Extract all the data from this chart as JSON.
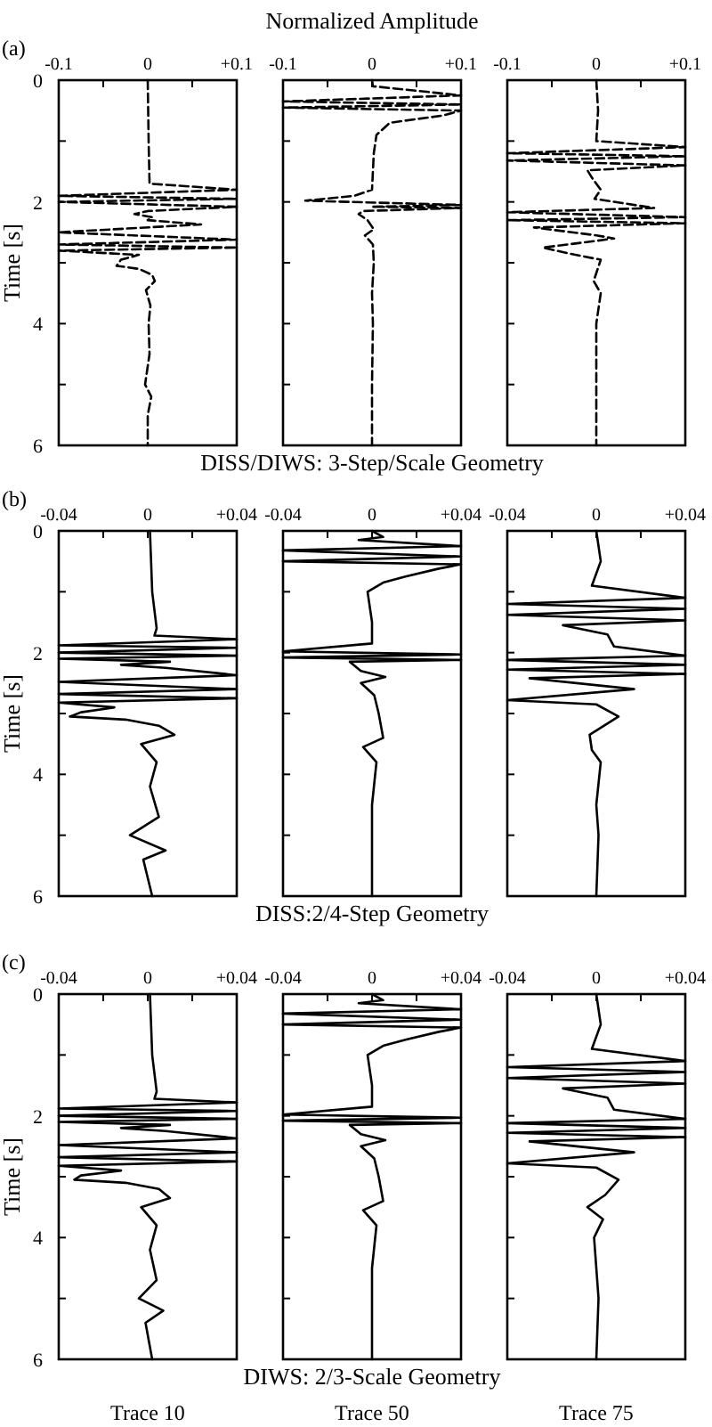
{
  "chart_data": [
    {
      "type": "line",
      "annotations": [
        "(a)"
      ],
      "ylabel": "Time [s]",
      "line_style": "dashed",
      "xlim": [
        -0.1,
        0.1
      ],
      "xticks": [
        -0.1,
        {
          "value": -0.05,
          "label": null
        },
        0,
        {
          "value": 0.05,
          "label": null
        },
        {
          "value": 0.1,
          "label": "+0.1"
        }
      ],
      "ylim": [
        6,
        0
      ],
      "yticks": [
        0,
        {
          "value": 1,
          "label": null
        },
        2,
        {
          "value": 3,
          "label": null
        },
        4,
        {
          "value": 5,
          "label": null
        },
        6
      ],
      "series": [
        {
          "color": "#000000",
          "x": [
            0,
            0.001,
            0.002,
            0.1,
            -0.1,
            0.1,
            -0.1,
            0.1,
            0,
            -0.015,
            0.005,
            0,
            0.06,
            -0.1,
            0.1,
            -0.1,
            0.1,
            -0.1,
            -0.01,
            -0.03,
            -0.035,
            -0.01,
            0.005,
            0.008,
            -0.002,
            0.003,
            0.001,
            0.002,
            -0.003,
            0.004,
            0,
            0
          ],
          "values": [
            0,
            1,
            1.7,
            1.8,
            1.9,
            1.95,
            2,
            2.08,
            2.15,
            2.2,
            2.25,
            2.3,
            2.37,
            2.5,
            2.62,
            2.7,
            2.75,
            2.8,
            2.87,
            2.95,
            3.05,
            3.1,
            3.2,
            3.3,
            3.45,
            3.7,
            4,
            4.5,
            5,
            5.2,
            5.5,
            6
          ]
        }
      ]
    },
    {
      "type": "line",
      "title": "Normalized Amplitude",
      "subtitle": "DISS/DIWS: 3-Step/Scale Geometry",
      "tick_labels": "x",
      "line_style": "dashed",
      "xlim": [
        -0.1,
        0.1
      ],
      "xticks": [
        -0.1,
        {
          "value": -0.05,
          "label": null
        },
        0,
        {
          "value": 0.05,
          "label": null
        },
        {
          "value": 0.1,
          "label": "+0.1"
        }
      ],
      "ylim": [
        6,
        0
      ],
      "yticks": [
        0,
        {
          "value": 1,
          "label": null
        },
        2,
        {
          "value": 3,
          "label": null
        },
        4,
        {
          "value": 5,
          "label": null
        },
        6
      ],
      "series": [
        {
          "color": "#000000",
          "x": [
            0,
            0.001,
            0.1,
            -0.1,
            0.1,
            -0.1,
            0.1,
            0.08,
            0.02,
            0.005,
            0.002,
            0,
            -0.02,
            -0.075,
            0.1,
            0,
            0.1,
            -0.01,
            -0.015,
            -0.005,
            0.002,
            -0.008,
            0.001,
            0.002,
            0,
            0.001,
            0,
            0
          ],
          "values": [
            0,
            0.1,
            0.25,
            0.35,
            0.4,
            0.45,
            0.5,
            0.58,
            0.7,
            0.9,
            1.2,
            1.8,
            1.9,
            1.98,
            2.05,
            2.08,
            2.1,
            2.15,
            2.2,
            2.3,
            2.45,
            2.55,
            2.7,
            3,
            3.5,
            4,
            5,
            6
          ]
        }
      ]
    },
    {
      "type": "line",
      "tick_labels": "x",
      "line_style": "dashed",
      "xlim": [
        -0.1,
        0.1
      ],
      "xticks": [
        -0.1,
        {
          "value": -0.05,
          "label": null
        },
        0,
        {
          "value": 0.05,
          "label": null
        },
        {
          "value": 0.1,
          "label": "+0.1"
        }
      ],
      "ylim": [
        6,
        0
      ],
      "yticks": [
        0,
        {
          "value": 1,
          "label": null
        },
        2,
        {
          "value": 3,
          "label": null
        },
        4,
        {
          "value": 5,
          "label": null
        },
        6
      ],
      "series": [
        {
          "color": "#000000",
          "x": [
            0,
            0.002,
            0,
            0.1,
            -0.1,
            0.1,
            -0.1,
            0.1,
            -0.01,
            -0.005,
            0.005,
            -0.002,
            0.065,
            -0.1,
            0.1,
            -0.1,
            0.1,
            -0.07,
            0,
            0.02,
            -0.005,
            -0.06,
            -0.03,
            0.005,
            -0.003,
            0.005,
            0,
            0
          ],
          "values": [
            0,
            0.5,
            1,
            1.1,
            1.2,
            1.25,
            1.32,
            1.4,
            1.48,
            1.6,
            1.8,
            1.95,
            2.1,
            2.17,
            2.25,
            2.3,
            2.35,
            2.42,
            2.55,
            2.6,
            2.65,
            2.75,
            2.85,
            2.95,
            3.3,
            3.5,
            4,
            6
          ]
        }
      ]
    },
    {
      "type": "line",
      "annotations": [
        "(b)"
      ],
      "ylabel": "Time [s]",
      "line_style": "solid",
      "xlim": [
        -0.04,
        0.04
      ],
      "xticks": [
        -0.04,
        {
          "value": -0.02,
          "label": null
        },
        0,
        {
          "value": 0.02,
          "label": null
        },
        {
          "value": 0.04,
          "label": "+0.04"
        }
      ],
      "ylim": [
        6,
        0
      ],
      "yticks": [
        0,
        {
          "value": 1,
          "label": null
        },
        2,
        {
          "value": 3,
          "label": null
        },
        4,
        {
          "value": 5,
          "label": null
        },
        6
      ],
      "series": [
        {
          "color": "#000000",
          "x": [
            0.001,
            0.002,
            0.004,
            0.003,
            0.04,
            -0.04,
            0.04,
            -0.04,
            0.04,
            -0.04,
            0.01,
            -0.012,
            0.008,
            0.04,
            -0.04,
            0.04,
            -0.04,
            0.04,
            -0.04,
            -0.015,
            -0.03,
            -0.035,
            -0.01,
            0.005,
            0.012,
            -0.003,
            0.004,
            0.001,
            0.005,
            -0.008,
            0.008,
            -0.002,
            0.002
          ],
          "values": [
            0,
            1,
            1.6,
            1.72,
            1.78,
            1.88,
            1.92,
            2,
            2.05,
            2.1,
            2.15,
            2.2,
            2.25,
            2.37,
            2.48,
            2.6,
            2.68,
            2.75,
            2.82,
            2.9,
            2.98,
            3.05,
            3.1,
            3.2,
            3.35,
            3.5,
            3.8,
            4.2,
            4.7,
            5,
            5.25,
            5.4,
            6
          ]
        }
      ]
    },
    {
      "type": "line",
      "subtitle": "DISS:2/4-Step Geometry",
      "tick_labels": "x",
      "line_style": "solid",
      "xlim": [
        -0.04,
        0.04
      ],
      "xticks": [
        -0.04,
        {
          "value": -0.02,
          "label": null
        },
        0,
        {
          "value": 0.02,
          "label": null
        },
        {
          "value": 0.04,
          "label": "+0.04"
        }
      ],
      "ylim": [
        6,
        0
      ],
      "yticks": [
        0,
        {
          "value": 1,
          "label": null
        },
        2,
        {
          "value": 3,
          "label": null
        },
        4,
        {
          "value": 5,
          "label": null
        },
        6
      ],
      "series": [
        {
          "color": "#000000",
          "x": [
            0,
            0.005,
            -0.006,
            0.04,
            -0.04,
            0.04,
            -0.04,
            0.04,
            0.03,
            0.015,
            0.005,
            -0.002,
            0,
            0,
            -0.04,
            0.04,
            -0.04,
            0.04,
            -0.01,
            -0.005,
            0.006,
            -0.005,
            0.001,
            0.003,
            0.005,
            -0.004,
            0.002,
            0,
            0
          ],
          "values": [
            0,
            0.1,
            0.15,
            0.25,
            0.32,
            0.42,
            0.5,
            0.55,
            0.62,
            0.75,
            0.85,
            1,
            1.5,
            1.85,
            1.98,
            2.03,
            2.08,
            2.12,
            2.15,
            2.3,
            2.4,
            2.5,
            2.7,
            3,
            3.4,
            3.55,
            3.8,
            4.5,
            6
          ]
        }
      ]
    },
    {
      "type": "line",
      "tick_labels": "x",
      "line_style": "solid",
      "xlim": [
        -0.04,
        0.04
      ],
      "xticks": [
        -0.04,
        {
          "value": -0.02,
          "label": null
        },
        0,
        {
          "value": 0.02,
          "label": null
        },
        {
          "value": 0.04,
          "label": "+0.04"
        }
      ],
      "ylim": [
        6,
        0
      ],
      "yticks": [
        0,
        {
          "value": 1,
          "label": null
        },
        2,
        {
          "value": 3,
          "label": null
        },
        4,
        {
          "value": 5,
          "label": null
        },
        6
      ],
      "series": [
        {
          "color": "#000000",
          "x": [
            0,
            0.002,
            -0.002,
            0.04,
            -0.04,
            0.04,
            -0.04,
            0.04,
            -0.015,
            0.005,
            0.008,
            0.04,
            -0.04,
            0.04,
            -0.04,
            0.04,
            -0.03,
            0.017,
            -0.04,
            0,
            0.01,
            -0.003,
            -0.002,
            0.002,
            0,
            0.001,
            0
          ],
          "values": [
            0,
            0.5,
            0.9,
            1.1,
            1.2,
            1.28,
            1.38,
            1.47,
            1.55,
            1.7,
            1.9,
            2.05,
            2.12,
            2.2,
            2.28,
            2.35,
            2.42,
            2.6,
            2.78,
            2.85,
            3.05,
            3.35,
            3.6,
            3.8,
            4.5,
            5,
            6
          ]
        }
      ]
    },
    {
      "type": "line",
      "annotations": [
        "(c)"
      ],
      "ylabel": "Time [s]",
      "xlabel": "Trace 10",
      "line_style": "solid",
      "xlim": [
        -0.04,
        0.04
      ],
      "xticks": [
        -0.04,
        {
          "value": -0.02,
          "label": null
        },
        0,
        {
          "value": 0.02,
          "label": null
        },
        {
          "value": 0.04,
          "label": "+0.04"
        }
      ],
      "ylim": [
        6,
        0
      ],
      "yticks": [
        0,
        {
          "value": 1,
          "label": null
        },
        2,
        {
          "value": 3,
          "label": null
        },
        4,
        {
          "value": 5,
          "label": null
        },
        6
      ],
      "series": [
        {
          "color": "#000000",
          "x": [
            0.001,
            0.002,
            0.004,
            0.003,
            0.04,
            -0.04,
            0.04,
            -0.04,
            0.04,
            -0.04,
            0.01,
            -0.012,
            0.008,
            0.04,
            -0.04,
            0.04,
            -0.04,
            0.04,
            -0.04,
            -0.012,
            -0.03,
            -0.033,
            -0.01,
            0.005,
            0.01,
            -0.003,
            0.004,
            0.001,
            0.004,
            -0.004,
            0.007,
            -0.001,
            0.002
          ],
          "values": [
            0,
            1,
            1.6,
            1.72,
            1.78,
            1.88,
            1.92,
            2,
            2.05,
            2.1,
            2.15,
            2.2,
            2.25,
            2.37,
            2.48,
            2.6,
            2.68,
            2.75,
            2.82,
            2.9,
            2.98,
            3.05,
            3.1,
            3.2,
            3.35,
            3.5,
            3.8,
            4.2,
            4.7,
            5,
            5.2,
            5.4,
            6
          ]
        }
      ]
    },
    {
      "type": "line",
      "subtitle": "DIWS: 2/3-Scale Geometry",
      "xlabel": "Trace 50",
      "tick_labels": "x",
      "line_style": "solid",
      "xlim": [
        -0.04,
        0.04
      ],
      "xticks": [
        -0.04,
        {
          "value": -0.02,
          "label": null
        },
        0,
        {
          "value": 0.02,
          "label": null
        },
        {
          "value": 0.04,
          "label": "+0.04"
        }
      ],
      "ylim": [
        6,
        0
      ],
      "yticks": [
        0,
        {
          "value": 1,
          "label": null
        },
        2,
        {
          "value": 3,
          "label": null
        },
        4,
        {
          "value": 5,
          "label": null
        },
        6
      ],
      "series": [
        {
          "color": "#000000",
          "x": [
            0,
            0.005,
            -0.006,
            0.04,
            -0.04,
            0.04,
            -0.04,
            0.04,
            0.03,
            0.015,
            0.005,
            -0.002,
            0,
            0,
            -0.04,
            0.04,
            -0.04,
            0.04,
            -0.01,
            -0.005,
            0.006,
            -0.005,
            0.001,
            0.003,
            0.005,
            -0.004,
            0.002,
            0,
            0
          ],
          "values": [
            0,
            0.1,
            0.15,
            0.25,
            0.32,
            0.42,
            0.5,
            0.55,
            0.62,
            0.75,
            0.85,
            1,
            1.5,
            1.85,
            1.98,
            2.03,
            2.08,
            2.12,
            2.15,
            2.3,
            2.4,
            2.5,
            2.7,
            3,
            3.4,
            3.55,
            3.8,
            4.5,
            6
          ]
        }
      ]
    },
    {
      "type": "line",
      "xlabel": "Trace 75",
      "tick_labels": "x",
      "line_style": "solid",
      "xlim": [
        -0.04,
        0.04
      ],
      "xticks": [
        -0.04,
        {
          "value": -0.02,
          "label": null
        },
        0,
        {
          "value": 0.02,
          "label": null
        },
        {
          "value": 0.04,
          "label": "+0.04"
        }
      ],
      "ylim": [
        6,
        0
      ],
      "yticks": [
        0,
        {
          "value": 1,
          "label": null
        },
        2,
        {
          "value": 3,
          "label": null
        },
        4,
        {
          "value": 5,
          "label": null
        },
        6
      ],
      "series": [
        {
          "color": "#000000",
          "x": [
            0,
            0.002,
            -0.002,
            0.04,
            -0.04,
            0.04,
            -0.04,
            0.04,
            -0.015,
            0.005,
            0.008,
            0.04,
            -0.04,
            0.04,
            -0.04,
            0.04,
            -0.03,
            0.017,
            -0.04,
            0,
            0.01,
            0.004,
            -0.004,
            0.003,
            -0.001,
            0.001,
            0
          ],
          "values": [
            0,
            0.5,
            0.9,
            1.1,
            1.2,
            1.28,
            1.38,
            1.47,
            1.55,
            1.7,
            1.9,
            2.05,
            2.12,
            2.2,
            2.28,
            2.35,
            2.42,
            2.6,
            2.78,
            2.85,
            3.05,
            3.3,
            3.5,
            3.7,
            4,
            5,
            6
          ]
        }
      ]
    }
  ]
}
